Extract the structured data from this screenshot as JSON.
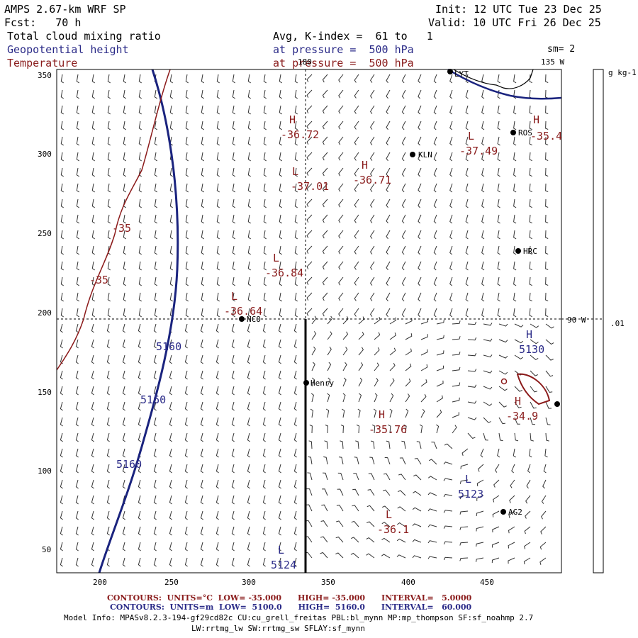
{
  "header": {
    "title": "AMPS 2.67-km WRF SP",
    "forecast": "Fcst:   70 h",
    "init": "Init: 12 UTC Tue 23 Dec 25",
    "valid": "Valid: 10 UTC Fri 26 Dec 25",
    "field_cloud": "Total cloud mixing ratio",
    "field_geopotential": "Geopotential height",
    "field_temperature": "Temperature",
    "avg_kindex": "Avg, K-index =  61 to   1",
    "pressure_line1": "at pressure =  500 hPa",
    "pressure_line2": "at pressure =  500 hPa",
    "smoothing": "sm= 2"
  },
  "colors": {
    "geopotential": "#1a237e",
    "temperature": "#8b1a1a",
    "station": "#000000",
    "gridline": "#000000"
  },
  "axes": {
    "x_ticks": [
      "200",
      "250",
      "300",
      "350",
      "400",
      "450"
    ],
    "y_ticks": [
      "350",
      "300",
      "250",
      "200",
      "150",
      "100",
      "50"
    ]
  },
  "map_labels": {
    "lon_180": "180",
    "lon_135w": "135 W",
    "lon_90w": "90 W"
  },
  "colorbar": {
    "unit": "g kg-1",
    "tick_value": ".01"
  },
  "stations": [
    "LYT",
    "ROS",
    "KLN",
    "HRC",
    "NCO",
    "Henry",
    "AG2"
  ],
  "extrema": [
    {
      "type": "H",
      "value": "-36.72",
      "field": "temperature"
    },
    {
      "type": "L",
      "value": "-37.49",
      "field": "temperature"
    },
    {
      "type": "H",
      "value": "-35.4",
      "field": "temperature"
    },
    {
      "type": "L",
      "value": "-37.01",
      "field": "temperature"
    },
    {
      "type": "H",
      "value": "-36.71",
      "field": "temperature"
    },
    {
      "type": "L",
      "value": "-36.84",
      "field": "temperature"
    },
    {
      "type": "L",
      "value": "-36.64",
      "field": "temperature"
    },
    {
      "type": "H",
      "value": "-35.76",
      "field": "temperature"
    },
    {
      "type": "H",
      "value": "-34.9",
      "field": "temperature"
    },
    {
      "type": "L",
      "value": "-36.1",
      "field": "temperature"
    },
    {
      "type": "H",
      "value": "5130",
      "field": "geopotential"
    },
    {
      "type": "L",
      "value": "5123",
      "field": "geopotential"
    },
    {
      "type": "L",
      "value": "5124",
      "field": "geopotential"
    }
  ],
  "contour_labels": {
    "temp_a": "-35",
    "temp_b": "-35",
    "geo_a": "5160",
    "geo_b": "5160",
    "geo_c": "5160"
  },
  "footer": {
    "temp_contours": "CONTOURS:  UNITS=°C  LOW= -35.000      HIGH= -35.000      INTERVAL=   5.0000",
    "geo_contours": "CONTOURS:  UNITS=m  LOW=  5100.0      HIGH=  5160.0      INTERVAL=   60.000",
    "model_info_1": "Model Info: MPASv8.2.3-194-gf29cd82c CU:cu_grell_freitas PBL:bl_mynn MP:mp_thompson SF:sf_noahmp 2.7",
    "model_info_2": "LW:rrtmg_lw SW:rrtmg_sw SFLAY:sf_mynn"
  }
}
